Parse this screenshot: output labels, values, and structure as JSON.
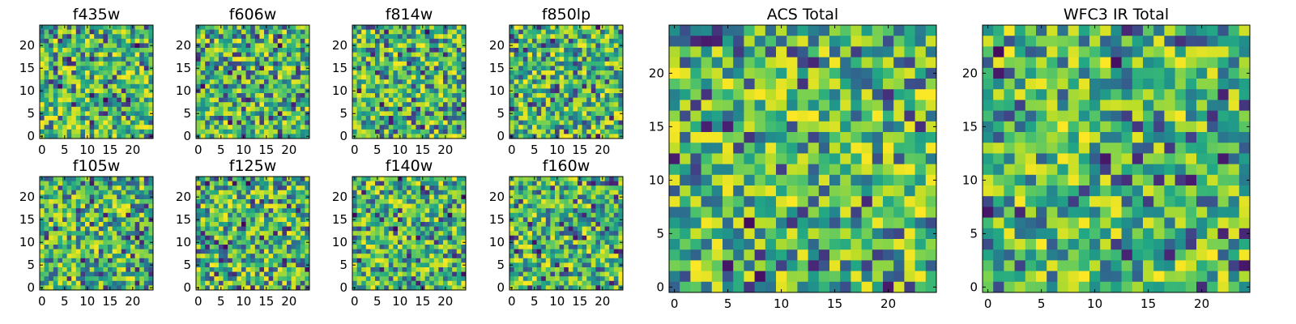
{
  "chart_data": [
    {
      "type": "heatmap",
      "title": "f435w",
      "xticks": [
        "0",
        "5",
        "10",
        "15",
        "20"
      ],
      "yticks": [
        "0",
        "5",
        "10",
        "15",
        "20"
      ],
      "xlim": [
        -0.5,
        24.5
      ],
      "ylim": [
        -0.5,
        24.5
      ],
      "grid_size": [
        25,
        25
      ],
      "colormap": "viridis",
      "seed": 11
    },
    {
      "type": "heatmap",
      "title": "f606w",
      "xticks": [
        "0",
        "5",
        "10",
        "15",
        "20"
      ],
      "yticks": [
        "0",
        "5",
        "10",
        "15",
        "20"
      ],
      "xlim": [
        -0.5,
        24.5
      ],
      "ylim": [
        -0.5,
        24.5
      ],
      "grid_size": [
        25,
        25
      ],
      "colormap": "viridis",
      "seed": 23
    },
    {
      "type": "heatmap",
      "title": "f814w",
      "xticks": [
        "0",
        "5",
        "10",
        "15",
        "20"
      ],
      "yticks": [
        "0",
        "5",
        "10",
        "15",
        "20"
      ],
      "xlim": [
        -0.5,
        24.5
      ],
      "ylim": [
        -0.5,
        24.5
      ],
      "grid_size": [
        25,
        25
      ],
      "colormap": "viridis",
      "seed": 37
    },
    {
      "type": "heatmap",
      "title": "f850lp",
      "xticks": [
        "0",
        "5",
        "10",
        "15",
        "20"
      ],
      "yticks": [
        "0",
        "5",
        "10",
        "15",
        "20"
      ],
      "xlim": [
        -0.5,
        24.5
      ],
      "ylim": [
        -0.5,
        24.5
      ],
      "grid_size": [
        25,
        25
      ],
      "colormap": "viridis",
      "seed": 41
    },
    {
      "type": "heatmap",
      "title": "f105w",
      "xticks": [
        "0",
        "5",
        "10",
        "15",
        "20"
      ],
      "yticks": [
        "0",
        "5",
        "10",
        "15",
        "20"
      ],
      "xlim": [
        -0.5,
        24.5
      ],
      "ylim": [
        -0.5,
        24.5
      ],
      "grid_size": [
        25,
        25
      ],
      "colormap": "viridis",
      "seed": 53
    },
    {
      "type": "heatmap",
      "title": "f125w",
      "xticks": [
        "0",
        "5",
        "10",
        "15",
        "20"
      ],
      "yticks": [
        "0",
        "5",
        "10",
        "15",
        "20"
      ],
      "xlim": [
        -0.5,
        24.5
      ],
      "ylim": [
        -0.5,
        24.5
      ],
      "grid_size": [
        25,
        25
      ],
      "colormap": "viridis",
      "seed": 67
    },
    {
      "type": "heatmap",
      "title": "f140w",
      "xticks": [
        "0",
        "5",
        "10",
        "15",
        "20"
      ],
      "yticks": [
        "0",
        "5",
        "10",
        "15",
        "20"
      ],
      "xlim": [
        -0.5,
        24.5
      ],
      "ylim": [
        -0.5,
        24.5
      ],
      "grid_size": [
        25,
        25
      ],
      "colormap": "viridis",
      "seed": 71
    },
    {
      "type": "heatmap",
      "title": "f160w",
      "xticks": [
        "0",
        "5",
        "10",
        "15",
        "20"
      ],
      "yticks": [
        "0",
        "5",
        "10",
        "15",
        "20"
      ],
      "xlim": [
        -0.5,
        24.5
      ],
      "ylim": [
        -0.5,
        24.5
      ],
      "grid_size": [
        25,
        25
      ],
      "colormap": "viridis",
      "seed": 83
    },
    {
      "type": "heatmap",
      "title": "ACS Total",
      "xticks": [
        "0",
        "5",
        "10",
        "15",
        "20"
      ],
      "yticks": [
        "0",
        "5",
        "10",
        "15",
        "20"
      ],
      "xlim": [
        -0.5,
        24.5
      ],
      "ylim": [
        -0.5,
        24.5
      ],
      "grid_size": [
        25,
        25
      ],
      "colormap": "viridis",
      "seed": 97
    },
    {
      "type": "heatmap",
      "title": "WFC3 IR Total",
      "xticks": [
        "0",
        "5",
        "10",
        "15",
        "20"
      ],
      "yticks": [
        "0",
        "5",
        "10",
        "15",
        "20"
      ],
      "xlim": [
        -0.5,
        24.5
      ],
      "ylim": [
        -0.5,
        24.5
      ],
      "grid_size": [
        25,
        25
      ],
      "colormap": "viridis",
      "seed": 101
    }
  ]
}
